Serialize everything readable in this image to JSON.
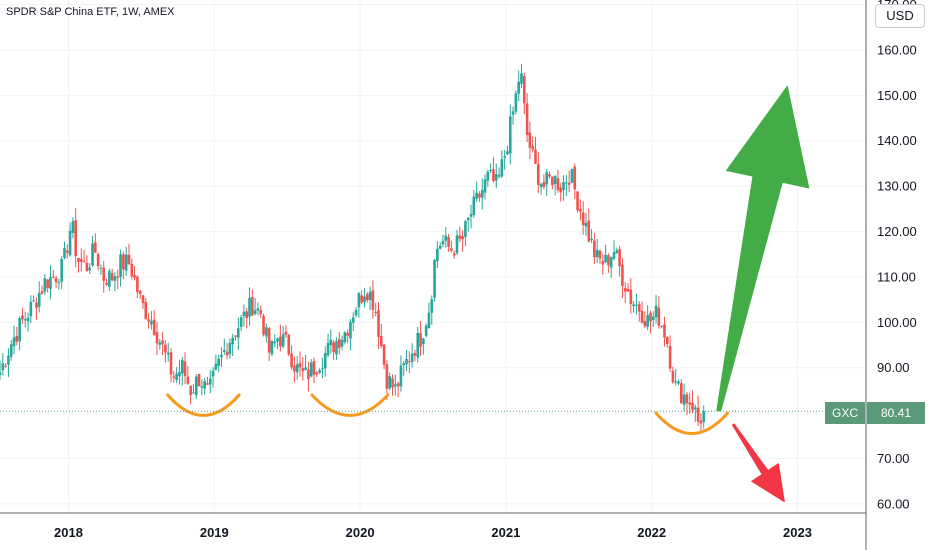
{
  "header": {
    "title": "SPDR S&P China ETF, 1W, AMEX"
  },
  "price_scale": {
    "currency": "USD",
    "ticker": "GXC",
    "last_price": "80.41"
  },
  "colors": {
    "up": "#26a69a",
    "down": "#ef5350",
    "up_arrow": "#43ac47",
    "down_arrow": "#f23645",
    "bowl": "#f59a1c",
    "badge": "#5a9a78"
  },
  "chart_data": {
    "type": "candlestick",
    "title": "SPDR S&P China ETF, 1W, AMEX",
    "xlabel": "",
    "ylabel": "",
    "x_ticks": [
      "2018",
      "2019",
      "2020",
      "2021",
      "2022",
      "2023"
    ],
    "x_tick_positions": [
      2018.0,
      2019.0,
      2020.0,
      2021.0,
      2022.0,
      2023.0
    ],
    "y_ticks": [
      "60.00",
      "70.00",
      "80.00",
      "90.00",
      "100.00",
      "110.00",
      "120.00",
      "130.00",
      "140.00",
      "150.00",
      "160.00",
      "170.00"
    ],
    "ylim": [
      58,
      171
    ],
    "xlim": [
      2017.53,
      2023.47
    ],
    "close_points": [
      [
        2017.53,
        89
      ],
      [
        2017.6,
        95
      ],
      [
        2017.68,
        100
      ],
      [
        2017.76,
        104
      ],
      [
        2017.84,
        109
      ],
      [
        2017.9,
        110
      ],
      [
        2017.96,
        112
      ],
      [
        2018.02,
        122
      ],
      [
        2018.06,
        114
      ],
      [
        2018.12,
        112
      ],
      [
        2018.18,
        116
      ],
      [
        2018.24,
        110
      ],
      [
        2018.3,
        110
      ],
      [
        2018.36,
        113
      ],
      [
        2018.42,
        113
      ],
      [
        2018.5,
        104
      ],
      [
        2018.58,
        100
      ],
      [
        2018.66,
        93
      ],
      [
        2018.72,
        88
      ],
      [
        2018.78,
        90
      ],
      [
        2018.84,
        85
      ],
      [
        2018.9,
        88
      ],
      [
        2018.96,
        84
      ],
      [
        2019.02,
        90
      ],
      [
        2019.1,
        96
      ],
      [
        2019.18,
        100
      ],
      [
        2019.26,
        104
      ],
      [
        2019.32,
        102
      ],
      [
        2019.38,
        93
      ],
      [
        2019.44,
        97
      ],
      [
        2019.5,
        95
      ],
      [
        2019.56,
        90
      ],
      [
        2019.62,
        88
      ],
      [
        2019.68,
        90
      ],
      [
        2019.76,
        93
      ],
      [
        2019.84,
        96
      ],
      [
        2019.9,
        98
      ],
      [
        2019.96,
        103
      ],
      [
        2020.04,
        108
      ],
      [
        2020.1,
        104
      ],
      [
        2020.18,
        88
      ],
      [
        2020.24,
        85
      ],
      [
        2020.3,
        90
      ],
      [
        2020.36,
        94
      ],
      [
        2020.42,
        97
      ],
      [
        2020.48,
        104
      ],
      [
        2020.52,
        116
      ],
      [
        2020.56,
        118
      ],
      [
        2020.62,
        116
      ],
      [
        2020.7,
        118
      ],
      [
        2020.76,
        124
      ],
      [
        2020.82,
        128
      ],
      [
        2020.88,
        132
      ],
      [
        2020.94,
        130
      ],
      [
        2021.0,
        138
      ],
      [
        2021.06,
        148
      ],
      [
        2021.1,
        156
      ],
      [
        2021.14,
        142
      ],
      [
        2021.2,
        134
      ],
      [
        2021.26,
        130
      ],
      [
        2021.32,
        132
      ],
      [
        2021.38,
        130
      ],
      [
        2021.44,
        133
      ],
      [
        2021.5,
        126
      ],
      [
        2021.56,
        120
      ],
      [
        2021.62,
        114
      ],
      [
        2021.68,
        113
      ],
      [
        2021.74,
        116
      ],
      [
        2021.8,
        110
      ],
      [
        2021.86,
        105
      ],
      [
        2021.92,
        103
      ],
      [
        2021.98,
        100
      ],
      [
        2022.04,
        102
      ],
      [
        2022.1,
        97
      ],
      [
        2022.16,
        86
      ],
      [
        2022.22,
        84
      ],
      [
        2022.28,
        82
      ],
      [
        2022.32,
        78
      ],
      [
        2022.36,
        80.41
      ]
    ],
    "last_price": 80.41,
    "annotations": {
      "bowls": [
        {
          "x0": 2018.68,
          "x1": 2019.17,
          "top": 84,
          "bottom": 79.5
        },
        {
          "x0": 2019.67,
          "x1": 2020.19,
          "top": 84,
          "bottom": 79.5
        },
        {
          "x0": 2022.03,
          "x1": 2022.52,
          "top": 80,
          "bottom": 75.5
        }
      ],
      "up_arrow": {
        "tail": [
          2022.46,
          80.5
        ],
        "head": [
          2022.93,
          152
        ]
      },
      "down_arrow": {
        "tail": [
          2022.56,
          77.5
        ],
        "head": [
          2022.91,
          60.5
        ]
      }
    }
  }
}
